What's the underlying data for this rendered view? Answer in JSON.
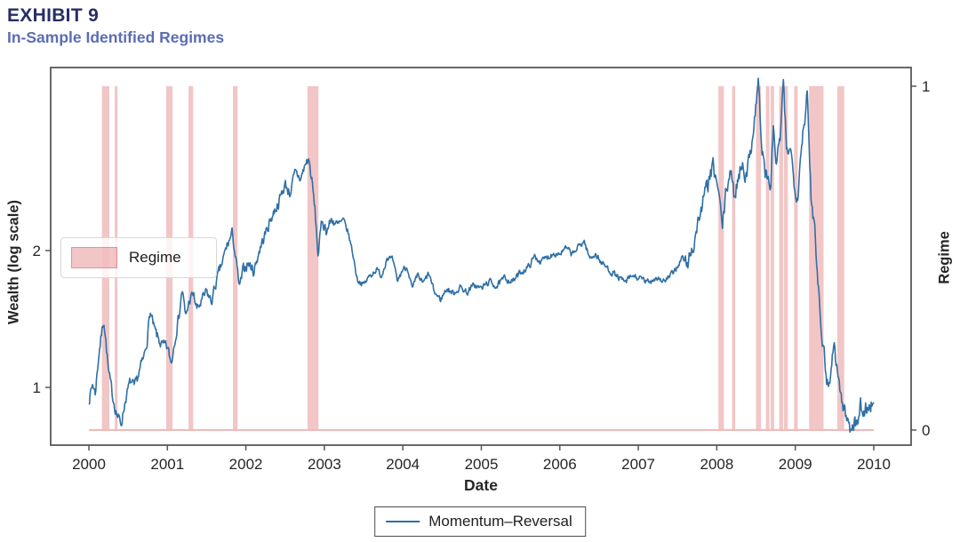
{
  "header": {
    "exhibit": "EXHIBIT 9",
    "title": "In-Sample Identified Regimes"
  },
  "chart_data": {
    "type": "line",
    "title": "In-Sample Identified Regimes",
    "xlabel": "Date",
    "ylabel_left": "Wealth (log scale)",
    "ylabel_right": "Regime",
    "x_ticks": [
      2000,
      2001,
      2002,
      2003,
      2004,
      2005,
      2006,
      2007,
      2008,
      2009,
      2010
    ],
    "y_ticks_left": [
      1,
      2
    ],
    "y_ticks_right": [
      0,
      1
    ],
    "y_scale_left": "log",
    "x_data_range": [
      2000.0,
      2010.0
    ],
    "legend_regime_label": "Regime",
    "legend_series_label": "Momentum–Reversal",
    "grid": false,
    "colors": {
      "line": "#2f6fa4",
      "band_base": "#da5c5c",
      "band_alpha": 0.35,
      "regime_baseline": "#f0b9b9",
      "frame": "#58585a",
      "tick_text": "#262626",
      "exhibit_label": "#272e66",
      "exhibit_title": "#5b6db4"
    },
    "regime_bands": [
      [
        2000.165,
        2000.215
      ],
      [
        2000.215,
        2000.26
      ],
      [
        2000.33,
        2000.365
      ],
      [
        2000.985,
        2001.065
      ],
      [
        2001.27,
        2001.33
      ],
      [
        2001.835,
        2001.895
      ],
      [
        2002.785,
        2002.925
      ],
      [
        2008.02,
        2008.09
      ],
      [
        2008.195,
        2008.235
      ],
      [
        2008.5,
        2008.565
      ],
      [
        2008.625,
        2008.67
      ],
      [
        2008.685,
        2008.73
      ],
      [
        2008.795,
        2008.845
      ],
      [
        2008.855,
        2008.905
      ],
      [
        2008.985,
        2009.03
      ],
      [
        2009.175,
        2009.36
      ],
      [
        2009.535,
        2009.625
      ]
    ],
    "series": [
      {
        "name": "Momentum–Reversal",
        "points": [
          [
            2000.0,
            0.94
          ],
          [
            2000.05,
            1.02
          ],
          [
            2000.08,
            0.97
          ],
          [
            2000.13,
            1.2
          ],
          [
            2000.19,
            1.42
          ],
          [
            2000.25,
            1.08
          ],
          [
            2000.3,
            0.96
          ],
          [
            2000.36,
            0.87
          ],
          [
            2000.41,
            0.83
          ],
          [
            2000.47,
            0.95
          ],
          [
            2000.53,
            1.03
          ],
          [
            2000.58,
            0.99
          ],
          [
            2000.64,
            1.08
          ],
          [
            2000.7,
            1.16
          ],
          [
            2000.74,
            1.27
          ],
          [
            2000.78,
            1.47
          ],
          [
            2000.83,
            1.34
          ],
          [
            2000.88,
            1.28
          ],
          [
            2000.94,
            1.23
          ],
          [
            2001.0,
            1.22
          ],
          [
            2001.05,
            1.13
          ],
          [
            2001.1,
            1.3
          ],
          [
            2001.15,
            1.45
          ],
          [
            2001.19,
            1.65
          ],
          [
            2001.23,
            1.42
          ],
          [
            2001.28,
            1.55
          ],
          [
            2001.33,
            1.6
          ],
          [
            2001.38,
            1.48
          ],
          [
            2001.45,
            1.56
          ],
          [
            2001.5,
            1.62
          ],
          [
            2001.56,
            1.54
          ],
          [
            2001.62,
            1.7
          ],
          [
            2001.7,
            1.88
          ],
          [
            2001.76,
            2.05
          ],
          [
            2001.83,
            2.18
          ],
          [
            2001.87,
            1.92
          ],
          [
            2001.92,
            1.65
          ],
          [
            2001.97,
            1.82
          ],
          [
            2002.03,
            1.88
          ],
          [
            2002.1,
            1.8
          ],
          [
            2002.17,
            2.0
          ],
          [
            2002.25,
            2.18
          ],
          [
            2002.33,
            2.38
          ],
          [
            2002.42,
            2.56
          ],
          [
            2002.5,
            2.8
          ],
          [
            2002.56,
            2.68
          ],
          [
            2002.63,
            2.95
          ],
          [
            2002.7,
            2.88
          ],
          [
            2002.76,
            3.1
          ],
          [
            2002.8,
            3.18
          ],
          [
            2002.84,
            2.85
          ],
          [
            2002.88,
            2.45
          ],
          [
            2002.92,
            1.96
          ],
          [
            2002.97,
            2.33
          ],
          [
            2003.03,
            2.22
          ],
          [
            2003.1,
            2.35
          ],
          [
            2003.17,
            2.26
          ],
          [
            2003.24,
            2.33
          ],
          [
            2003.3,
            2.2
          ],
          [
            2003.36,
            1.98
          ],
          [
            2003.42,
            1.73
          ],
          [
            2003.5,
            1.68
          ],
          [
            2003.58,
            1.76
          ],
          [
            2003.66,
            1.82
          ],
          [
            2003.73,
            1.76
          ],
          [
            2003.8,
            1.94
          ],
          [
            2003.87,
            1.9
          ],
          [
            2003.93,
            1.71
          ],
          [
            2004.0,
            1.82
          ],
          [
            2004.06,
            1.84
          ],
          [
            2004.12,
            1.64
          ],
          [
            2004.19,
            1.76
          ],
          [
            2004.26,
            1.69
          ],
          [
            2004.33,
            1.78
          ],
          [
            2004.4,
            1.62
          ],
          [
            2004.48,
            1.56
          ],
          [
            2004.56,
            1.65
          ],
          [
            2004.64,
            1.61
          ],
          [
            2004.73,
            1.66
          ],
          [
            2004.82,
            1.62
          ],
          [
            2004.91,
            1.68
          ],
          [
            2005.0,
            1.65
          ],
          [
            2005.1,
            1.71
          ],
          [
            2005.2,
            1.67
          ],
          [
            2005.3,
            1.74
          ],
          [
            2005.4,
            1.71
          ],
          [
            2005.5,
            1.79
          ],
          [
            2005.6,
            1.84
          ],
          [
            2005.68,
            1.94
          ],
          [
            2005.76,
            1.89
          ],
          [
            2005.85,
            1.94
          ],
          [
            2005.93,
            1.98
          ],
          [
            2006.0,
            1.97
          ],
          [
            2006.08,
            2.02
          ],
          [
            2006.16,
            1.96
          ],
          [
            2006.24,
            2.04
          ],
          [
            2006.31,
            2.1
          ],
          [
            2006.38,
            1.92
          ],
          [
            2006.45,
            1.97
          ],
          [
            2006.53,
            1.88
          ],
          [
            2006.62,
            1.82
          ],
          [
            2006.72,
            1.76
          ],
          [
            2006.83,
            1.7
          ],
          [
            2006.93,
            1.76
          ],
          [
            2007.03,
            1.73
          ],
          [
            2007.13,
            1.7
          ],
          [
            2007.23,
            1.75
          ],
          [
            2007.33,
            1.71
          ],
          [
            2007.43,
            1.77
          ],
          [
            2007.5,
            1.85
          ],
          [
            2007.56,
            1.93
          ],
          [
            2007.62,
            1.86
          ],
          [
            2007.7,
            2.05
          ],
          [
            2007.77,
            2.35
          ],
          [
            2007.84,
            2.62
          ],
          [
            2007.9,
            2.85
          ],
          [
            2007.96,
            3.05
          ],
          [
            2008.02,
            2.7
          ],
          [
            2008.07,
            2.25
          ],
          [
            2008.12,
            2.7
          ],
          [
            2008.17,
            3.02
          ],
          [
            2008.22,
            2.62
          ],
          [
            2008.28,
            2.95
          ],
          [
            2008.33,
            3.15
          ],
          [
            2008.38,
            2.88
          ],
          [
            2008.44,
            3.45
          ],
          [
            2008.49,
            4.05
          ],
          [
            2008.53,
            4.78
          ],
          [
            2008.57,
            3.4
          ],
          [
            2008.61,
            3.0
          ],
          [
            2008.65,
            2.84
          ],
          [
            2008.69,
            2.8
          ],
          [
            2008.72,
            3.75
          ],
          [
            2008.76,
            3.05
          ],
          [
            2008.81,
            3.58
          ],
          [
            2008.85,
            4.62
          ],
          [
            2008.89,
            3.25
          ],
          [
            2008.93,
            3.46
          ],
          [
            2008.98,
            2.88
          ],
          [
            2009.03,
            2.64
          ],
          [
            2009.08,
            3.48
          ],
          [
            2009.12,
            3.95
          ],
          [
            2009.15,
            4.42
          ],
          [
            2009.2,
            2.62
          ],
          [
            2009.25,
            2.24
          ],
          [
            2009.3,
            1.62
          ],
          [
            2009.35,
            1.26
          ],
          [
            2009.4,
            1.06
          ],
          [
            2009.43,
            1.0
          ],
          [
            2009.47,
            1.17
          ],
          [
            2009.5,
            1.24
          ],
          [
            2009.55,
            1.04
          ],
          [
            2009.6,
            0.92
          ],
          [
            2009.65,
            0.86
          ],
          [
            2009.7,
            0.815
          ],
          [
            2009.74,
            0.85
          ],
          [
            2009.78,
            0.82
          ],
          [
            2009.83,
            0.91
          ],
          [
            2009.87,
            0.88
          ],
          [
            2009.92,
            0.92
          ],
          [
            2009.96,
            0.9
          ],
          [
            2010.0,
            0.96
          ]
        ]
      }
    ]
  }
}
